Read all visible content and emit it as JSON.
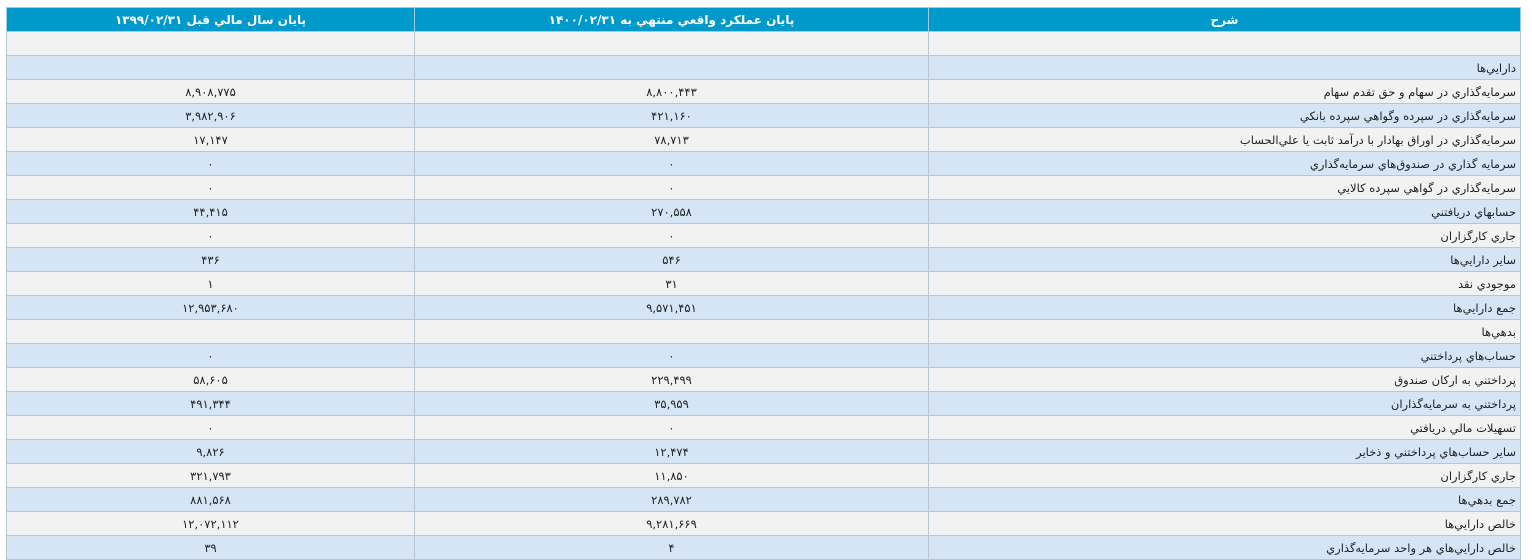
{
  "header": {
    "desc": "شرح",
    "current": "پايان عملکرد واقعي منتهي به ۱۴۰۰/۰۲/۳۱",
    "previous": "پايان سال مالي قبل ۱۳۹۹/۰۲/۳۱"
  },
  "rows": [
    {
      "desc": "",
      "current": "",
      "previous": ""
    },
    {
      "desc": "دارايي‌ها",
      "current": "",
      "previous": ""
    },
    {
      "desc": "سرمايه‌گذاري در سهام و حق تقدم سهام",
      "current": "۸,۸۰۰,۴۴۳",
      "previous": "۸,۹۰۸,۷۷۵"
    },
    {
      "desc": "سرمايه‌گذاري در سپرده وگواهي سپرده بانکي",
      "current": "۴۲۱,۱۶۰",
      "previous": "۳,۹۸۲,۹۰۶"
    },
    {
      "desc": "سرمايه‌گذاري در اوراق بهادار با درآمد ثابت يا علي‌الحساب",
      "current": "۷۸,۷۱۳",
      "previous": "۱۷,۱۴۷"
    },
    {
      "desc": "سرمايه گذاري در صندوق‌هاي سرمايه‌گذاري",
      "current": "۰",
      "previous": "۰"
    },
    {
      "desc": "سرمايه‌گذاري در گواهي سپرده کالايي",
      "current": "۰",
      "previous": "۰"
    },
    {
      "desc": "حسابهاي دريافتني",
      "current": "۲۷۰,۵۵۸",
      "previous": "۴۴,۴۱۵"
    },
    {
      "desc": "جاري کارگزاران",
      "current": "۰",
      "previous": "۰"
    },
    {
      "desc": "ساير دارايي‌ها",
      "current": "۵۴۶",
      "previous": "۴۳۶"
    },
    {
      "desc": "موجودي نقد",
      "current": "۳۱",
      "previous": "۱"
    },
    {
      "desc": "جمع دارايي‌ها",
      "current": "۹,۵۷۱,۴۵۱",
      "previous": "۱۲,۹۵۳,۶۸۰"
    },
    {
      "desc": "بدهي‌ها",
      "current": "",
      "previous": ""
    },
    {
      "desc": "حساب‌هاي پرداختني",
      "current": "۰",
      "previous": "۰"
    },
    {
      "desc": "پرداختني به ارکان صندوق",
      "current": "۲۲۹,۴۹۹",
      "previous": "۵۸,۶۰۵"
    },
    {
      "desc": "پرداختني به سرمايه‌گذاران",
      "current": "۳۵,۹۵۹",
      "previous": "۴۹۱,۳۴۴"
    },
    {
      "desc": "تسهيلات مالي دريافتي",
      "current": "۰",
      "previous": "۰"
    },
    {
      "desc": "ساير حساب‌هاي پرداختني و ذخاير",
      "current": "۱۲,۴۷۴",
      "previous": "۹,۸۲۶"
    },
    {
      "desc": "جاري کارگزاران",
      "current": "۱۱,۸۵۰",
      "previous": "۳۲۱,۷۹۳"
    },
    {
      "desc": "جمع بدهي‌ها",
      "current": "۲۸۹,۷۸۲",
      "previous": "۸۸۱,۵۶۸"
    },
    {
      "desc": "خالص دارايي‌ها",
      "current": "۹,۲۸۱,۶۶۹",
      "previous": "۱۲,۰۷۲,۱۱۲"
    },
    {
      "desc": "خالص دارايي‌هاي هر واحد سرمايه‌گذاري",
      "current": "۴",
      "previous": "۳۹"
    }
  ]
}
